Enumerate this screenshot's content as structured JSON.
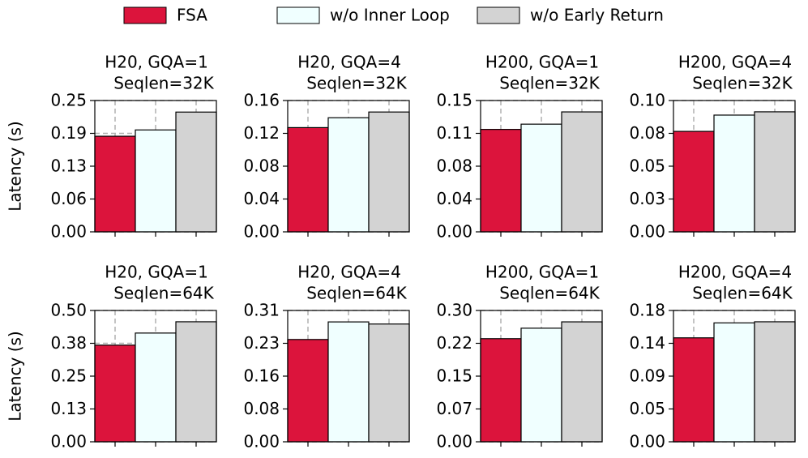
{
  "chart_data": [
    {
      "type": "bar",
      "title": "H20, GQA=1",
      "subtitle": "Seqlen=32K",
      "ylabel": "Latency (s)",
      "grid": true,
      "ylim": [
        0,
        0.25
      ],
      "yticks": [
        {
          "value": 0,
          "label": "0.00"
        },
        {
          "value": 0.0625,
          "label": "0.06"
        },
        {
          "value": 0.125,
          "label": "0.13"
        },
        {
          "value": 0.1875,
          "label": "0.19"
        },
        {
          "value": 0.25,
          "label": "0.25"
        }
      ],
      "series": [
        {
          "name": "FSA",
          "color": "#dc143c",
          "values": [
            0.182
          ]
        },
        {
          "name": "w/o Inner Loop",
          "color": "#f0ffff",
          "values": [
            0.194
          ]
        },
        {
          "name": "w/o Early Return",
          "color": "#d3d3d3",
          "values": [
            0.228
          ]
        }
      ]
    },
    {
      "type": "bar",
      "title": "H20, GQA=4",
      "subtitle": "Seqlen=32K",
      "grid": true,
      "ylim": [
        0,
        0.16
      ],
      "yticks": [
        {
          "value": 0,
          "label": "0.00"
        },
        {
          "value": 0.04,
          "label": "0.04"
        },
        {
          "value": 0.08,
          "label": "0.08"
        },
        {
          "value": 0.12,
          "label": "0.12"
        },
        {
          "value": 0.16,
          "label": "0.16"
        }
      ],
      "series": [
        {
          "color": "#dc143c",
          "values": [
            0.127
          ]
        },
        {
          "color": "#f0ffff",
          "values": [
            0.139
          ]
        },
        {
          "color": "#d3d3d3",
          "values": [
            0.146
          ]
        }
      ]
    },
    {
      "type": "bar",
      "title": "H200, GQA=1",
      "subtitle": "Seqlen=32K",
      "grid": true,
      "ylim": [
        0,
        0.15
      ],
      "yticks": [
        {
          "value": 0,
          "label": "0.00"
        },
        {
          "value": 0.0375,
          "label": "0.04"
        },
        {
          "value": 0.075,
          "label": "0.08"
        },
        {
          "value": 0.1125,
          "label": "0.11"
        },
        {
          "value": 0.15,
          "label": "0.15"
        }
      ],
      "series": [
        {
          "color": "#dc143c",
          "values": [
            0.117
          ]
        },
        {
          "color": "#f0ffff",
          "values": [
            0.123
          ]
        },
        {
          "color": "#d3d3d3",
          "values": [
            0.137
          ]
        }
      ]
    },
    {
      "type": "bar",
      "title": "H200, GQA=4",
      "subtitle": "Seqlen=32K",
      "grid": true,
      "ylim": [
        0,
        0.1
      ],
      "yticks": [
        {
          "value": 0,
          "label": "0.00"
        },
        {
          "value": 0.025,
          "label": "0.03"
        },
        {
          "value": 0.05,
          "label": "0.05"
        },
        {
          "value": 0.075,
          "label": "0.08"
        },
        {
          "value": 0.1,
          "label": "0.10"
        }
      ],
      "series": [
        {
          "color": "#dc143c",
          "values": [
            0.0765
          ]
        },
        {
          "color": "#f0ffff",
          "values": [
            0.0889
          ]
        },
        {
          "color": "#d3d3d3",
          "values": [
            0.0914
          ]
        }
      ]
    },
    {
      "type": "bar",
      "title": "H20, GQA=1",
      "subtitle": "Seqlen=64K",
      "ylabel": "Latency (s)",
      "grid": true,
      "ylim": [
        0,
        0.5
      ],
      "yticks": [
        {
          "value": 0,
          "label": "0.00"
        },
        {
          "value": 0.125,
          "label": "0.13"
        },
        {
          "value": 0.25,
          "label": "0.25"
        },
        {
          "value": 0.375,
          "label": "0.38"
        },
        {
          "value": 0.5,
          "label": "0.50"
        }
      ],
      "series": [
        {
          "color": "#dc143c",
          "values": [
            0.368
          ]
        },
        {
          "color": "#f0ffff",
          "values": [
            0.414
          ]
        },
        {
          "color": "#d3d3d3",
          "values": [
            0.457
          ]
        }
      ]
    },
    {
      "type": "bar",
      "title": "H20, GQA=4",
      "subtitle": "Seqlen=64K",
      "grid": true,
      "ylim": [
        0,
        0.31
      ],
      "yticks": [
        {
          "value": 0,
          "label": "0.00"
        },
        {
          "value": 0.0775,
          "label": "0.08"
        },
        {
          "value": 0.155,
          "label": "0.16"
        },
        {
          "value": 0.2325,
          "label": "0.23"
        },
        {
          "value": 0.31,
          "label": "0.31"
        }
      ],
      "series": [
        {
          "color": "#dc143c",
          "values": [
            0.2415
          ]
        },
        {
          "color": "#f0ffff",
          "values": [
            0.283
          ]
        },
        {
          "color": "#d3d3d3",
          "values": [
            0.278
          ]
        }
      ]
    },
    {
      "type": "bar",
      "title": "H200, GQA=1",
      "subtitle": "Seqlen=64K",
      "grid": true,
      "ylim": [
        0,
        0.3
      ],
      "yticks": [
        {
          "value": 0,
          "label": "0.00"
        },
        {
          "value": 0.075,
          "label": "0.07"
        },
        {
          "value": 0.15,
          "label": "0.15"
        },
        {
          "value": 0.225,
          "label": "0.22"
        },
        {
          "value": 0.3,
          "label": "0.30"
        }
      ],
      "series": [
        {
          "color": "#dc143c",
          "values": [
            0.2356
          ]
        },
        {
          "color": "#f0ffff",
          "values": [
            0.2595
          ]
        },
        {
          "color": "#d3d3d3",
          "values": [
            0.274
          ]
        }
      ]
    },
    {
      "type": "bar",
      "title": "H200, GQA=4",
      "subtitle": "Seqlen=64K",
      "grid": true,
      "ylim": [
        0,
        0.18
      ],
      "yticks": [
        {
          "value": 0,
          "label": "0.00"
        },
        {
          "value": 0.045,
          "label": "0.05"
        },
        {
          "value": 0.09,
          "label": "0.09"
        },
        {
          "value": 0.135,
          "label": "0.14"
        },
        {
          "value": 0.18,
          "label": "0.18"
        }
      ],
      "series": [
        {
          "color": "#dc143c",
          "values": [
            0.1425
          ]
        },
        {
          "color": "#f0ffff",
          "values": [
            0.163
          ]
        },
        {
          "color": "#d3d3d3",
          "values": [
            0.1645
          ]
        }
      ]
    }
  ]
}
